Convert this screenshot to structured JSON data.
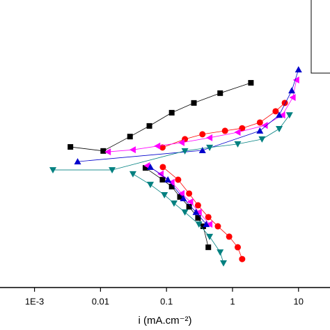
{
  "chart_data": {
    "type": "scatter",
    "x_label": "i (mA.cm⁻²)",
    "xlim": [
      0.0003,
      30
    ],
    "ylim": [
      0,
      100
    ],
    "x_log": true,
    "xticks": [
      {
        "value": 0.001,
        "label": "1E-3"
      },
      0.01,
      0.1,
      1,
      10
    ],
    "series": [
      {
        "color": "#000000",
        "marker": "square",
        "x": [
          0.0035,
          0.011,
          0.028,
          0.055,
          0.12,
          0.26,
          0.65,
          1.9,
          null,
          0.048,
          0.087,
          0.12,
          0.16,
          0.22,
          0.3,
          0.36,
          0.43
        ],
        "y": [
          48.9,
          47.5,
          52.5,
          56.2,
          60.8,
          64.2,
          67.6,
          71.2,
          null,
          41.6,
          37.5,
          35.1,
          31.5,
          28.1,
          24.2,
          21.3,
          14.0
        ]
      },
      {
        "color": "#ff0000",
        "marker": "circle",
        "x": [
          0.087,
          0.19,
          0.35,
          0.77,
          1.4,
          2.6,
          4.5,
          6.2,
          null,
          0.088,
          0.15,
          0.22,
          0.3,
          0.43,
          0.6,
          0.89,
          1.2,
          1.4
        ],
        "y": [
          48.7,
          51.6,
          53.3,
          54.5,
          55.4,
          57.4,
          61.3,
          64.2,
          null,
          41.9,
          37.5,
          32.7,
          28.6,
          24.5,
          21.3,
          17.7,
          14.0,
          9.9
        ]
      },
      {
        "color": "#ff00ff",
        "marker": "triangle-left",
        "x": [
          0.013,
          0.031,
          0.073,
          0.17,
          0.45,
          1.2,
          3.1,
          5.7,
          8.2,
          9.3,
          null,
          0.051,
          0.082,
          0.12,
          0.17,
          0.23,
          0.31,
          0.45
        ],
        "y": [
          47.2,
          47.9,
          49.2,
          50.4,
          52.1,
          54.0,
          56.4,
          60.0,
          66.1,
          72.2,
          null,
          42.4,
          39.5,
          36.6,
          32.7,
          29.8,
          26.2,
          22.0
        ]
      },
      {
        "color": "#0000cc",
        "marker": "triangle-up",
        "x": [
          0.0045,
          0.35,
          2.6,
          5.1,
          7.9,
          10,
          null,
          0.057,
          0.105,
          0.18,
          0.28,
          0.4
        ],
        "y": [
          43.8,
          47.7,
          54.5,
          60.0,
          68.5,
          75.8,
          null,
          41.9,
          37.5,
          31.0,
          26.2,
          22.0
        ]
      },
      {
        "color": "#008080",
        "marker": "triangle-down",
        "x": [
          0.0019,
          0.015,
          0.19,
          0.45,
          1.2,
          2.8,
          5.1,
          7.3,
          null,
          0.031,
          0.057,
          0.093,
          0.13,
          0.19,
          0.31,
          0.45,
          0.65,
          0.73
        ],
        "y": [
          40.9,
          40.9,
          47.5,
          48.7,
          49.9,
          51.6,
          55.2,
          60.0,
          null,
          39.5,
          35.8,
          32.2,
          29.3,
          26.2,
          22.0,
          17.7,
          12.3,
          8.5
        ]
      }
    ]
  }
}
